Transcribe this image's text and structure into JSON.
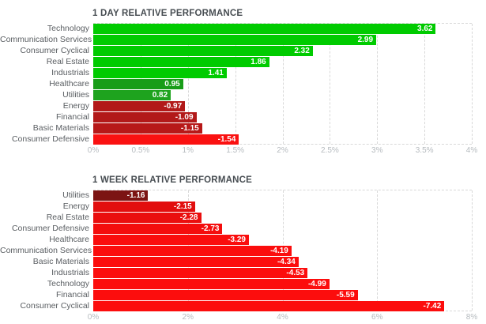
{
  "styles": {
    "background": "#ffffff",
    "title_color": "#474d52",
    "category_label_color": "#5a5e62",
    "tick_label_color": "#b6bbbf",
    "grid_color": "#d8d8d8",
    "value_text_color": "#ffffff"
  },
  "chart_data": [
    {
      "type": "bar",
      "orientation": "horizontal",
      "title": "1 DAY RELATIVE PERFORMANCE",
      "legend": "none",
      "grid": "dashed vertical line at each tick, dashed top and bottom plot border",
      "bar_length_rule": "bars plotted by absolute value on positive axis",
      "categories": [
        "Technology",
        "Communication Services",
        "Consumer Cyclical",
        "Real Estate",
        "Industrials",
        "Healthcare",
        "Utilities",
        "Energy",
        "Financial",
        "Basic Materials",
        "Consumer Defensive"
      ],
      "values": [
        3.62,
        2.99,
        2.32,
        1.86,
        1.41,
        0.95,
        0.82,
        -0.97,
        -1.09,
        -1.15,
        -1.54
      ],
      "value_labels": [
        "3.62",
        "2.99",
        "2.32",
        "1.86",
        "1.41",
        "0.95",
        "0.82",
        "-0.97",
        "-1.09",
        "-1.15",
        "-1.54"
      ],
      "bar_colors": [
        "#00cb00",
        "#00cb00",
        "#00cb00",
        "#00cb00",
        "#00cb00",
        "#189d18",
        "#1ea31e",
        "#b21919",
        "#b21919",
        "#b71818",
        "#fa1111"
      ],
      "axis": {
        "min": 0,
        "max": 4,
        "tick_labels": [
          "0%",
          "0.5%",
          "1%",
          "1.5%",
          "2%",
          "2.5%",
          "3%",
          "3.5%",
          "4%"
        ]
      }
    },
    {
      "type": "bar",
      "orientation": "horizontal",
      "title": "1 WEEK RELATIVE PERFORMANCE",
      "legend": "none",
      "grid": "dashed vertical line at each tick, dashed top and bottom plot border",
      "bar_length_rule": "bars plotted by absolute value on positive axis",
      "categories": [
        "Utilities",
        "Energy",
        "Real Estate",
        "Consumer Defensive",
        "Healthcare",
        "Communication Services",
        "Basic Materials",
        "Industrials",
        "Technology",
        "Financial",
        "Consumer Cyclical"
      ],
      "values": [
        -1.16,
        -2.15,
        -2.28,
        -2.73,
        -3.29,
        -4.19,
        -4.34,
        -4.53,
        -4.99,
        -5.59,
        -7.42
      ],
      "value_labels": [
        "-1.16",
        "-2.15",
        "-2.28",
        "-2.73",
        "-3.29",
        "-4.19",
        "-4.34",
        "-4.53",
        "-4.99",
        "-5.59",
        "-7.42"
      ],
      "bar_colors": [
        "#7c1413",
        "#e20e0e",
        "#ea0e0e",
        "#f40d0d",
        "#fa0d0d",
        "#fb0d0d",
        "#fc0d0d",
        "#fc0d0d",
        "#fc0d0d",
        "#fc0d0d",
        "#fc0d0d"
      ],
      "axis": {
        "min": 0,
        "max": 8,
        "tick_labels": [
          "0%",
          "2%",
          "4%",
          "6%",
          "8%"
        ]
      }
    }
  ]
}
